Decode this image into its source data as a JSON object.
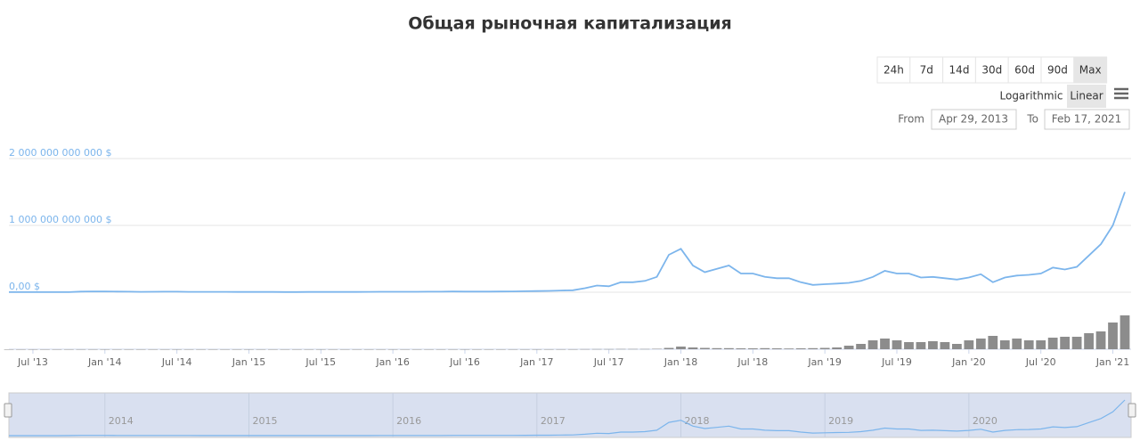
{
  "chart_data": {
    "type": "line",
    "title": "Общая рыночная капитализация",
    "controls": {
      "ranges": [
        "24h",
        "7d",
        "14d",
        "30d",
        "60d",
        "90d",
        "Max"
      ],
      "selected_range": "Max",
      "scales": [
        "Logarithmic",
        "Linear"
      ],
      "selected_scale": "Linear",
      "from_label": "From",
      "from": "Apr 29, 2013",
      "to_label": "To",
      "to": "Feb 17, 2021"
    },
    "x": [
      "2013-05",
      "2013-06",
      "2013-07",
      "2013-08",
      "2013-09",
      "2013-10",
      "2013-11",
      "2013-12",
      "2014-01",
      "2014-02",
      "2014-03",
      "2014-04",
      "2014-05",
      "2014-06",
      "2014-07",
      "2014-08",
      "2014-09",
      "2014-10",
      "2014-11",
      "2014-12",
      "2015-01",
      "2015-02",
      "2015-03",
      "2015-04",
      "2015-05",
      "2015-06",
      "2015-07",
      "2015-08",
      "2015-09",
      "2015-10",
      "2015-11",
      "2015-12",
      "2016-01",
      "2016-02",
      "2016-03",
      "2016-04",
      "2016-05",
      "2016-06",
      "2016-07",
      "2016-08",
      "2016-09",
      "2016-10",
      "2016-11",
      "2016-12",
      "2017-01",
      "2017-02",
      "2017-03",
      "2017-04",
      "2017-05",
      "2017-06",
      "2017-07",
      "2017-08",
      "2017-09",
      "2017-10",
      "2017-11",
      "2017-12",
      "2018-01",
      "2018-02",
      "2018-03",
      "2018-04",
      "2018-05",
      "2018-06",
      "2018-07",
      "2018-08",
      "2018-09",
      "2018-10",
      "2018-11",
      "2018-12",
      "2019-01",
      "2019-02",
      "2019-03",
      "2019-04",
      "2019-05",
      "2019-06",
      "2019-07",
      "2019-08",
      "2019-09",
      "2019-10",
      "2019-11",
      "2019-12",
      "2020-01",
      "2020-02",
      "2020-03",
      "2020-04",
      "2020-05",
      "2020-06",
      "2020-07",
      "2020-08",
      "2020-09",
      "2020-10",
      "2020-11",
      "2020-12",
      "2021-01",
      "2021-02"
    ],
    "series": [
      {
        "color": "#7cb5ec",
        "values": [
          1500000000.0,
          1200000000.0,
          1100000000.0,
          1300000000.0,
          1500000000.0,
          2000000000.0,
          10000000000.0,
          12000000000.0,
          11000000000.0,
          9000000000.0,
          8000000000.0,
          6000000000.0,
          7000000000.0,
          8000000000.0,
          8000000000.0,
          6000000000.0,
          5000000000.0,
          5000000000.0,
          5000000000.0,
          4500000000.0,
          3500000000.0,
          3500000000.0,
          3500000000.0,
          3300000000.0,
          3300000000.0,
          3500000000.0,
          4300000000.0,
          3500000000.0,
          3500000000.0,
          4500000000.0,
          5500000000.0,
          6500000000.0,
          6500000000.0,
          6500000000.0,
          6800000000.0,
          7500000000.0,
          8500000000.0,
          11000000000.0,
          10000000000.0,
          9500000000.0,
          10000000000.0,
          11000000000.0,
          12000000000.0,
          15000000000.0,
          17000000000.0,
          20000000000.0,
          25000000000.0,
          30000000000.0,
          60000000000.0,
          100000000000.0,
          90000000000.0,
          150000000000.0,
          150000000000.0,
          170000000000.0,
          230000000000.0,
          560000000000.0,
          650000000000.0,
          400000000000.0,
          300000000000.0,
          350000000000.0,
          400000000000.0,
          280000000000.0,
          280000000000.0,
          230000000000.0,
          210000000000.0,
          210000000000.0,
          150000000000.0,
          110000000000.0,
          120000000000.0,
          130000000000.0,
          140000000000.0,
          170000000000.0,
          230000000000.0,
          320000000000.0,
          280000000000.0,
          280000000000.0,
          220000000000.0,
          230000000000.0,
          210000000000.0,
          190000000000.0,
          220000000000.0,
          270000000000.0,
          150000000000.0,
          220000000000.0,
          250000000000.0,
          260000000000.0,
          280000000000.0,
          370000000000.0,
          340000000000.0,
          380000000000.0,
          550000000000.0,
          720000000000.0,
          1000000000000.0,
          1500000000000.0
        ]
      },
      {
        "type": "bar",
        "axis": "y2",
        "color": "#8c8c8c",
        "values": [
          20000000.0,
          20000000.0,
          20000000.0,
          20000000.0,
          20000000.0,
          50000000.0,
          200000000.0,
          200000000.0,
          100000000.0,
          100000000.0,
          100000000.0,
          50000000.0,
          50000000.0,
          50000000.0,
          50000000.0,
          50000000.0,
          50000000.0,
          50000000.0,
          50000000.0,
          50000000.0,
          50000000.0,
          50000000.0,
          50000000.0,
          50000000.0,
          50000000.0,
          50000000.0,
          50000000.0,
          50000000.0,
          50000000.0,
          50000000.0,
          100000000.0,
          100000000.0,
          100000000.0,
          100000000.0,
          100000000.0,
          100000000.0,
          100000000.0,
          200000000.0,
          200000000.0,
          100000000.0,
          100000000.0,
          100000000.0,
          200000000.0,
          200000000.0,
          300000000.0,
          300000000.0,
          500000000.0,
          500000000.0,
          1500000000.0,
          2000000000.0,
          2000000000.0,
          3000000000.0,
          3000000000.0,
          3000000000.0,
          5000000000.0,
          15000000000.0,
          30000000000.0,
          20000000000.0,
          15000000000.0,
          12000000000.0,
          12000000000.0,
          10000000000.0,
          10000000000.0,
          12000000000.0,
          10000000000.0,
          8000000000.0,
          10000000000.0,
          12000000000.0,
          15000000000.0,
          20000000000.0,
          40000000000.0,
          60000000000.0,
          100000000000.0,
          120000000000.0,
          100000000000.0,
          80000000000.0,
          80000000000.0,
          90000000000.0,
          80000000000.0,
          60000000000.0,
          100000000000.0,
          120000000000.0,
          150000000000.0,
          100000000000.0,
          120000000000.0,
          100000000000.0,
          100000000000.0,
          130000000000.0,
          140000000000.0,
          140000000000.0,
          180000000000.0,
          200000000000.0,
          300000000000.0,
          380000000000.0
        ]
      }
    ],
    "xlim": [
      "2013-05",
      "2021-02"
    ],
    "xticks": [
      {
        "value": "2013-07",
        "label": "Jul '13"
      },
      {
        "value": "2014-01",
        "label": "Jan '14"
      },
      {
        "value": "2014-07",
        "label": "Jul '14"
      },
      {
        "value": "2015-01",
        "label": "Jan '15"
      },
      {
        "value": "2015-07",
        "label": "Jul '15"
      },
      {
        "value": "2016-01",
        "label": "Jan '16"
      },
      {
        "value": "2016-07",
        "label": "Jul '16"
      },
      {
        "value": "2017-01",
        "label": "Jan '17"
      },
      {
        "value": "2017-07",
        "label": "Jul '17"
      },
      {
        "value": "2018-01",
        "label": "Jan '18"
      },
      {
        "value": "2018-07",
        "label": "Jul '18"
      },
      {
        "value": "2019-01",
        "label": "Jan '19"
      },
      {
        "value": "2019-07",
        "label": "Jul '19"
      },
      {
        "value": "2020-01",
        "label": "Jan '20"
      },
      {
        "value": "2020-07",
        "label": "Jul '20"
      },
      {
        "value": "2021-01",
        "label": "Jan '21"
      }
    ],
    "ylim": [
      0,
      2000000000000.0
    ],
    "yticks": [
      {
        "value": 0,
        "label": "0,00 $"
      },
      {
        "value": 1000000000000.0,
        "label": "1 000 000 000 000 $"
      },
      {
        "value": 2000000000000.0,
        "label": "2 000 000 000 000 $"
      }
    ],
    "y2lim": [
      0,
      400000000000.0
    ],
    "grid": true,
    "log_scale": false,
    "navigator_years": [
      "2014",
      "2015",
      "2016",
      "2017",
      "2018",
      "2019",
      "2020"
    ]
  }
}
